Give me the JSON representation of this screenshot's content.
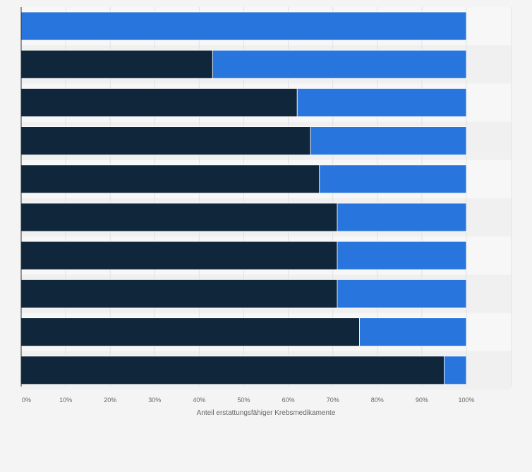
{
  "chart_data": {
    "type": "bar",
    "orientation": "horizontal",
    "stacked": true,
    "categories": [
      "",
      "",
      "",
      "",
      "",
      "",
      "",
      "",
      "",
      ""
    ],
    "series": [
      {
        "values": [
          0,
          43,
          62,
          65,
          67,
          71,
          71,
          71,
          76,
          95
        ],
        "color": "#10263b"
      },
      {
        "values": [
          100,
          57,
          38,
          35,
          33,
          29,
          29,
          29,
          24,
          5
        ],
        "color": "#2876dd"
      }
    ],
    "xlabel": "Anteil erstattungsfähiger Krebsmedikamente",
    "xlim": [
      0,
      100
    ],
    "x_ticks": [
      "0%",
      "10%",
      "20%",
      "30%",
      "40%",
      "50%",
      "60%",
      "70%",
      "80%",
      "90%",
      "100%"
    ],
    "grid": true,
    "legend": "none"
  },
  "colors": {
    "background": "#f4f4f5",
    "plot_band_light": "#f7f7f8",
    "plot_band_dark": "#f0f0f1",
    "gridline": "#e2e2e4"
  }
}
